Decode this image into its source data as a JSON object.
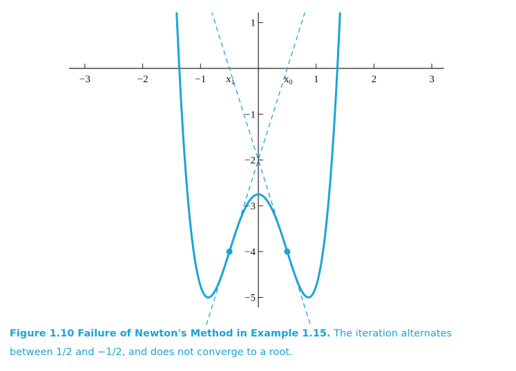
{
  "chart_data": {
    "type": "line",
    "title": "",
    "xlabel": "",
    "ylabel": "",
    "xlim": [
      -3,
      3
    ],
    "ylim": [
      -5,
      1
    ],
    "xticks": [
      "−3",
      "−2",
      "−1",
      "1",
      "2",
      "3"
    ],
    "yticks": [
      "1",
      "−1",
      "−2",
      "−3",
      "−4",
      "−5"
    ],
    "series": [
      {
        "function": "f(x) = 4x^4 - 6x^2 - 11/4",
        "style": "solid"
      },
      {
        "function": "tangent at x = 1/2: y = -4x - 2",
        "style": "dashed"
      },
      {
        "function": "tangent at x = -1/2: y = 4x - 2",
        "style": "dashed"
      }
    ],
    "points": [
      {
        "x": -0.5,
        "y": -4
      },
      {
        "x": 0.5,
        "y": -4
      }
    ],
    "annotations": [
      {
        "label": "x",
        "subscript": "0",
        "x": 0.5
      },
      {
        "label": "x",
        "subscript": "1",
        "x": -0.5
      }
    ],
    "colors": {
      "curve": "#1aa3d9",
      "axes": "#222222"
    }
  },
  "caption": {
    "bold": "Figure 1.10 Failure of Newton's Method in Example 1.15.",
    "line1_rest": " The iteration alternates",
    "line2": "between 1/2 and −1/2, and does not converge to a root."
  }
}
